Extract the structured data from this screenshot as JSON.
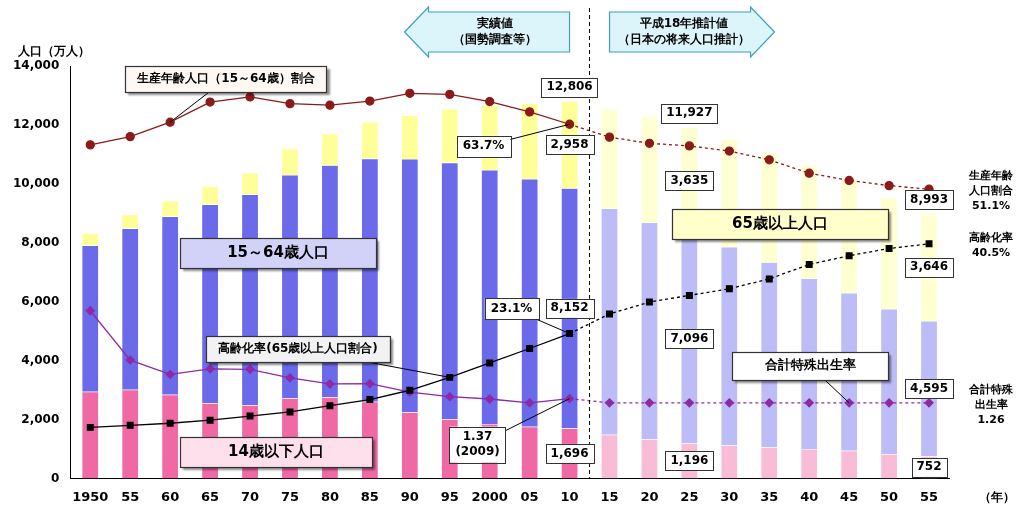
{
  "chart_data": {
    "type": "bar",
    "stacked": true,
    "grid": false,
    "y_label": "人口（万人）",
    "x_label": "（年）",
    "categories": [
      "1950",
      "55",
      "60",
      "65",
      "70",
      "75",
      "80",
      "85",
      "90",
      "95",
      "2000",
      "05",
      "10",
      "15",
      "20",
      "25",
      "30",
      "35",
      "40",
      "45",
      "50",
      "55"
    ],
    "ylim": [
      0,
      14000
    ],
    "yticks": [
      0,
      {
        "value": 2000,
        "label": "2,000"
      },
      {
        "value": 4000,
        "label": "4,000"
      },
      {
        "value": 6000,
        "label": "6,000"
      },
      {
        "value": 8000,
        "label": "8,000"
      },
      {
        "value": 10000,
        "label": "10,000"
      },
      {
        "value": 12000,
        "label": "12,000"
      },
      {
        "value": 14000,
        "label": "14,000"
      }
    ],
    "y2lim": [
      -5,
      75
    ],
    "y3lim": [
      -0.7,
      10
    ],
    "projection_start": "15",
    "periods": [
      {
        "label": "実績値",
        "sublabel": "（国勢調査等）",
        "direction": "left"
      },
      {
        "label": "平成18年推計値",
        "sublabel": "（日本の将来人口推計）",
        "direction": "right"
      }
    ],
    "series": [
      {
        "name": "14歳以下人口",
        "type": "bar",
        "color": "#ef6aa4",
        "values": [
          2943,
          3012,
          2843,
          2553,
          2482,
          2722,
          2751,
          2603,
          2249,
          2001,
          1847,
          1752,
          1696,
          1484,
          1324,
          1196,
          1115,
          1047,
          995,
          937,
          821,
          752
        ]
      },
      {
        "name": "15～64歳人口",
        "type": "bar",
        "color": "#6b6bea",
        "values": [
          4966,
          5473,
          6047,
          6744,
          7157,
          7581,
          7883,
          8251,
          8590,
          8716,
          8622,
          8409,
          8152,
          7681,
          7363,
          7096,
          6740,
          6292,
          5787,
          5353,
          4930,
          4595
        ]
      },
      {
        "name": "65歳以上人口",
        "type": "bar",
        "color": "#ffff99",
        "values": [
          411,
          475,
          535,
          618,
          739,
          887,
          1065,
          1247,
          1489,
          1826,
          2204,
          2567,
          2958,
          3378,
          3590,
          3635,
          3667,
          3725,
          3853,
          3856,
          3764,
          3646
        ]
      },
      {
        "name": "生産年齢人口（15～64歳）割合",
        "type": "line",
        "axis": "y2",
        "marker": "circle",
        "color": "#8b1a1a",
        "values": [
          59.7,
          61.3,
          64.1,
          68.0,
          69.0,
          67.7,
          67.4,
          68.2,
          69.7,
          69.5,
          68.1,
          66.1,
          63.7,
          61.2,
          60.0,
          59.5,
          58.5,
          56.8,
          54.2,
          52.8,
          51.8,
          51.1
        ]
      },
      {
        "name": "高齢化率(65歳以上人口割合)",
        "type": "line",
        "axis": "y2",
        "marker": "square",
        "color": "#000000",
        "values": [
          4.9,
          5.3,
          5.7,
          6.3,
          7.1,
          7.9,
          9.1,
          10.3,
          12.1,
          14.6,
          17.4,
          20.2,
          23.1,
          26.9,
          29.2,
          30.5,
          31.8,
          33.7,
          36.5,
          38.2,
          39.6,
          40.5
        ]
      },
      {
        "name": "合計特殊出生率",
        "type": "line",
        "axis": "y3",
        "marker": "diamond",
        "color": "#8e2aa6",
        "values": [
          3.65,
          2.37,
          2.0,
          2.14,
          2.13,
          1.91,
          1.75,
          1.76,
          1.54,
          1.42,
          1.36,
          1.26,
          1.37,
          1.26,
          1.26,
          1.26,
          1.26,
          1.26,
          1.26,
          1.26,
          1.26,
          1.26
        ]
      }
    ],
    "annotations": [
      {
        "text": "12,806",
        "category": "10",
        "position": "top"
      },
      {
        "text": "2,958",
        "category": "10",
        "series": "65歳以上人口",
        "position": "center"
      },
      {
        "text": "8,152",
        "category": "10",
        "series": "15～64歳人口",
        "position": "center"
      },
      {
        "text": "1,696",
        "category": "10",
        "series": "14歳以下人口",
        "position": "center"
      },
      {
        "text": "11,927",
        "category": "25",
        "position": "top"
      },
      {
        "text": "3,635",
        "category": "25",
        "series": "65歳以上人口",
        "position": "center"
      },
      {
        "text": "7,096",
        "category": "25",
        "series": "15～64歳人口",
        "position": "center"
      },
      {
        "text": "1,196",
        "category": "25",
        "series": "14歳以下人口",
        "position": "center"
      },
      {
        "text": "8,993",
        "category": "55",
        "position": "top"
      },
      {
        "text": "3,646",
        "category": "55",
        "series": "65歳以上人口",
        "position": "center"
      },
      {
        "text": "4,595",
        "category": "55",
        "series": "15～64歳人口",
        "position": "center"
      },
      {
        "text": "752",
        "category": "55",
        "series": "14歳以下人口",
        "position": "center"
      },
      {
        "text": "63.7%",
        "category": "10",
        "series": "生産年齢人口（15～64歳）割合",
        "position": "callout"
      },
      {
        "text": "23.1%",
        "category": "10",
        "series": "高齢化率(65歳以上人口割合)",
        "position": "callout"
      },
      {
        "text": "1.37\n(2009)",
        "category": "10",
        "series": "合計特殊出生率",
        "position": "callout"
      },
      {
        "text": "生産年齢\n人口割合\n51.1%",
        "category": "55",
        "series": "生産年齢人口（15～64歳）割合",
        "position": "right"
      },
      {
        "text": "高齢化率\n40.5%",
        "category": "55",
        "series": "高齢化率(65歳以上人口割合)",
        "position": "right"
      },
      {
        "text": "合計特殊\n出生率\n1.26",
        "category": "55",
        "series": "合計特殊出生率",
        "position": "right"
      }
    ]
  }
}
